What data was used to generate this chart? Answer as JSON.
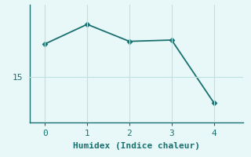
{
  "x": [
    0,
    1,
    2,
    3,
    4
  ],
  "y": [
    17.5,
    19.0,
    17.7,
    17.8,
    13.0
  ],
  "line_color": "#1a7070",
  "bg_color": "#e8f8f8",
  "grid_color": "#c0e0e0",
  "xlabel": "Humidex (Indice chaleur)",
  "xlabel_fontsize": 8,
  "tick_fontsize": 8,
  "yticks": [
    15
  ],
  "ylim": [
    11.5,
    20.5
  ],
  "xlim": [
    -0.35,
    4.7
  ],
  "linewidth": 1.3,
  "markersize": 3.5,
  "linestyle": "-"
}
